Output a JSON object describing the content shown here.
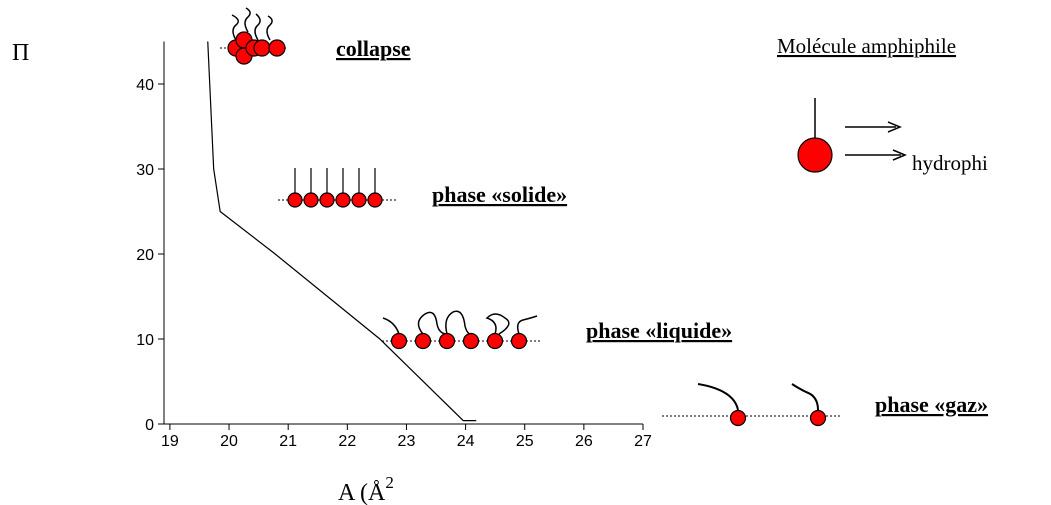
{
  "chart_data": {
    "type": "line",
    "y_label": "Π",
    "x_label": "A (Å",
    "x_label_superscript": "2",
    "x": [
      19.64,
      19.74,
      19.85,
      20.78,
      22.55,
      23.96,
      24.18
    ],
    "series": [
      {
        "color": "#000000",
        "values": [
          45,
          30,
          25,
          20,
          10,
          0.4,
          0.4
        ]
      }
    ],
    "xlim": [
      18.9,
      27
    ],
    "xticks": [
      19,
      20,
      21,
      22,
      23,
      24,
      25,
      26,
      27
    ],
    "ylim": [
      0,
      45
    ],
    "yticks": [
      0,
      10,
      20,
      30,
      40
    ],
    "annotations": [
      "collapse",
      "phase «solide»",
      "phase «liquide»",
      "phase «gaz»"
    ],
    "legend": {
      "title": "Molécule amphiphile",
      "hydrophilic": "hydrophi"
    }
  }
}
